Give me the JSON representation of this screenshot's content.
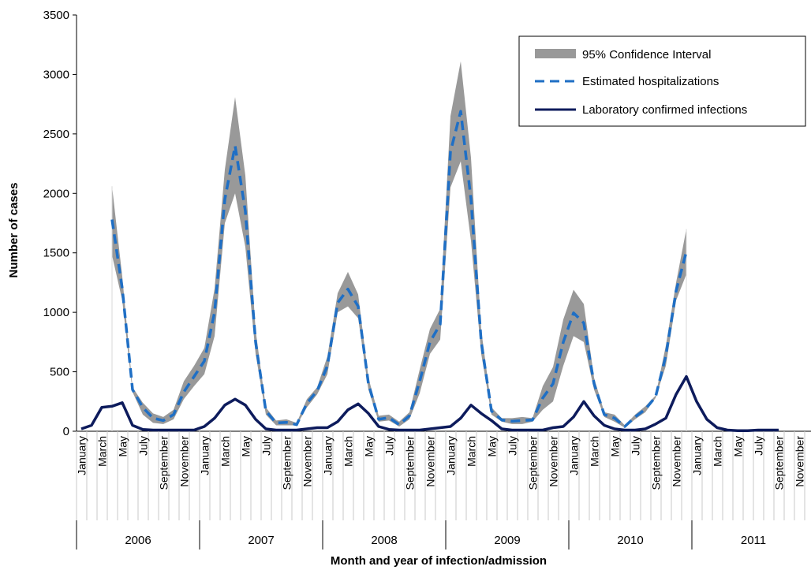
{
  "chart_data": {
    "type": "line",
    "title": "",
    "xlabel": "Month and year of infection/admission",
    "ylabel": "Number of cases",
    "ylim": [
      0,
      3500
    ],
    "yticks": [
      "0",
      "500",
      "1000",
      "1500",
      "2000",
      "2500",
      "3000",
      "3500"
    ],
    "grid": false,
    "legend_position": "top-right",
    "month_labels": [
      "January",
      "March",
      "May",
      "July",
      "September",
      "November"
    ],
    "years": [
      "2006",
      "2007",
      "2008",
      "2009",
      "2010",
      "2011"
    ],
    "x_start": "2006-01",
    "series": [
      {
        "name": "95% Confidence Interval",
        "style": "band",
        "color": "#999999",
        "start_index": 3,
        "lower": [
          1480,
          1100,
          330,
          140,
          70,
          60,
          100,
          270,
          380,
          480,
          800,
          1750,
          2000,
          1550,
          650,
          140,
          50,
          50,
          50,
          200,
          310,
          480,
          1000,
          1050,
          950,
          350,
          80,
          90,
          40,
          100,
          320,
          650,
          770,
          2050,
          2270,
          1600,
          650,
          140,
          80,
          60,
          60,
          80,
          180,
          250,
          550,
          800,
          750,
          350,
          120,
          80,
          30,
          100,
          160,
          280,
          550,
          1100,
          1320
        ],
        "upper": [
          2060,
          1300,
          370,
          240,
          150,
          120,
          180,
          420,
          550,
          700,
          1200,
          2200,
          2810,
          2150,
          850,
          200,
          90,
          100,
          70,
          270,
          370,
          630,
          1160,
          1340,
          1150,
          450,
          130,
          140,
          80,
          160,
          520,
          860,
          1030,
          2650,
          3110,
          2300,
          850,
          200,
          110,
          110,
          120,
          110,
          380,
          540,
          940,
          1190,
          1070,
          450,
          160,
          140,
          50,
          140,
          210,
          300,
          720,
          1250,
          1700
        ]
      },
      {
        "name": "Estimated hospitalizations",
        "style": "dashed",
        "color": "#1f6fc5",
        "start_index": 3,
        "values": [
          1780,
          1200,
          350,
          200,
          110,
          90,
          140,
          330,
          460,
          590,
          1000,
          1950,
          2400,
          1850,
          750,
          170,
          70,
          75,
          55,
          235,
          340,
          550,
          1080,
          1195,
          1050,
          400,
          100,
          115,
          55,
          130,
          420,
          750,
          900,
          2350,
          2690,
          1950,
          750,
          170,
          95,
          85,
          90,
          95,
          280,
          400,
          750,
          995,
          910,
          400,
          140,
          110,
          40,
          120,
          185,
          290,
          635,
          1180,
          1510
        ]
      },
      {
        "name": "Laboratory confirmed infections",
        "style": "solid",
        "color": "#0d1b5c",
        "start_index": 0,
        "values": [
          20,
          50,
          200,
          210,
          240,
          50,
          15,
          10,
          10,
          10,
          10,
          10,
          40,
          110,
          220,
          270,
          220,
          100,
          20,
          10,
          10,
          10,
          20,
          30,
          30,
          80,
          180,
          230,
          150,
          40,
          15,
          10,
          10,
          10,
          20,
          30,
          40,
          110,
          220,
          150,
          90,
          20,
          10,
          10,
          10,
          10,
          30,
          40,
          120,
          250,
          130,
          50,
          20,
          10,
          10,
          20,
          60,
          110,
          310,
          460,
          250,
          100,
          30,
          10,
          5,
          5,
          10,
          10,
          10
        ]
      }
    ]
  }
}
